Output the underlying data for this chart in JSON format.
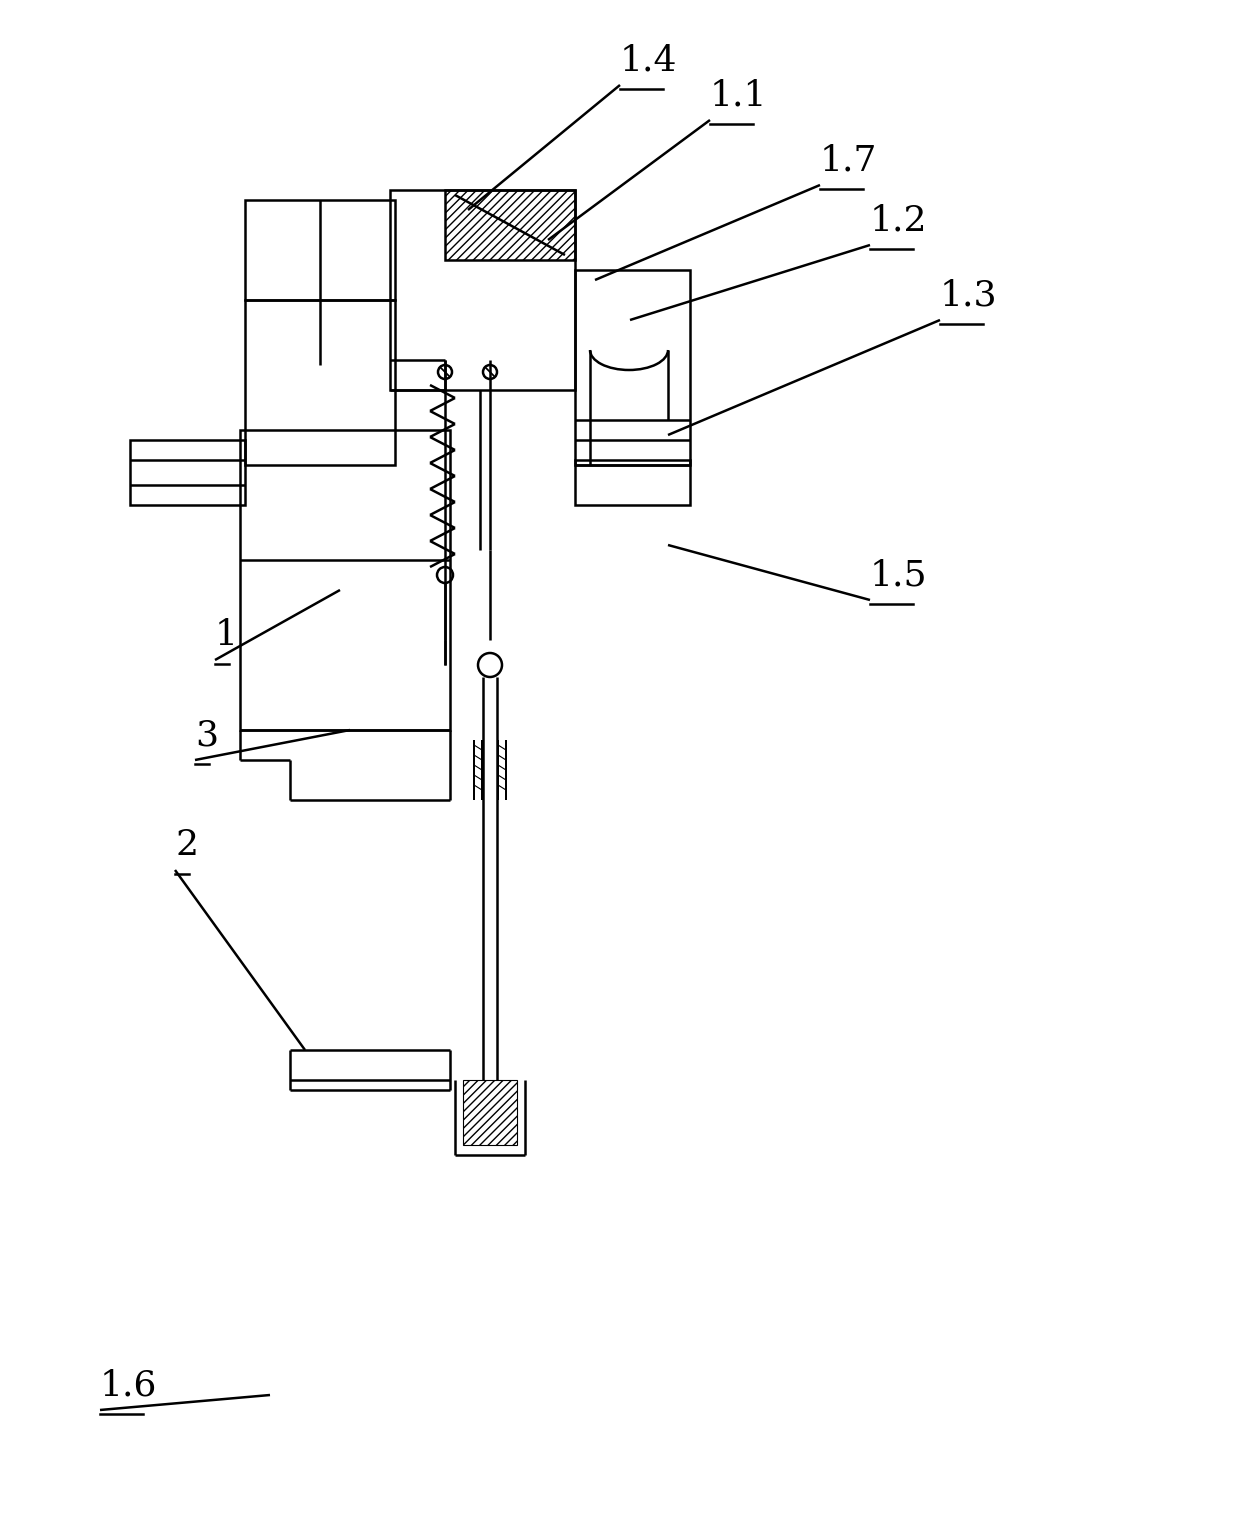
{
  "background_color": "#ffffff",
  "lc": "black",
  "lw": 1.8,
  "fig_width": 12.4,
  "fig_height": 15.24,
  "dpi": 100
}
